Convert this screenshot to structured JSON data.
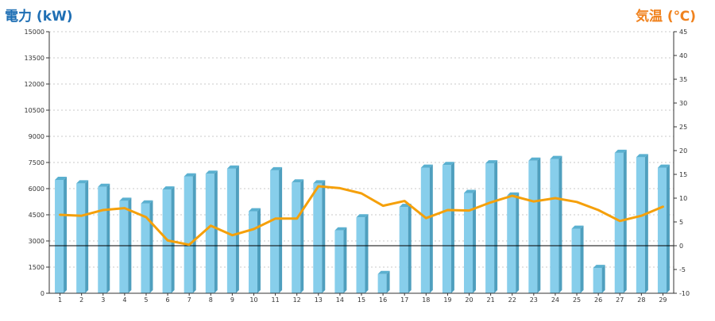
{
  "chart_data": {
    "type": "bar",
    "left_axis_title": "電力 (kW)",
    "right_axis_title": "気温 (℃)",
    "categories": [
      "1",
      "2",
      "3",
      "4",
      "5",
      "6",
      "7",
      "8",
      "9",
      "10",
      "11",
      "12",
      "13",
      "14",
      "15",
      "16",
      "17",
      "18",
      "19",
      "20",
      "21",
      "22",
      "23",
      "24",
      "25",
      "26",
      "27",
      "28",
      "29"
    ],
    "series": [
      {
        "type": "bar",
        "axis": "left",
        "color": "#87ceeb",
        "values": [
          6500,
          6300,
          6100,
          5300,
          5150,
          5950,
          6700,
          6850,
          7150,
          4700,
          7050,
          6350,
          6300,
          3600,
          4350,
          1100,
          4950,
          7200,
          7350,
          5750,
          7450,
          5600,
          7600,
          7700,
          3700,
          1450,
          8050,
          7800,
          7200
        ]
      },
      {
        "type": "line",
        "axis": "right",
        "color": "#f5a00a",
        "values": [
          6.5,
          6.3,
          7.5,
          7.9,
          6.0,
          1.1,
          0.2,
          4.2,
          2.2,
          3.5,
          5.7,
          5.7,
          12.5,
          12.1,
          11.0,
          8.4,
          9.4,
          5.8,
          7.5,
          7.4,
          9.1,
          10.5,
          9.3,
          10.0,
          9.2,
          7.5,
          5.2,
          6.3,
          8.2
        ]
      }
    ],
    "left_axis": {
      "min": 0,
      "max": 15000,
      "ticks": [
        "0",
        "1500",
        "3000",
        "4500",
        "6000",
        "7500",
        "9000",
        "10500",
        "12000",
        "13500",
        "15000"
      ]
    },
    "right_axis": {
      "min": -10,
      "max": 45,
      "ticks": [
        "-10",
        "-5",
        "0",
        "5",
        "10",
        "15",
        "20",
        "25",
        "30",
        "35",
        "40",
        "45"
      ]
    },
    "reference_line": {
      "axis": "right",
      "value": 0,
      "color": "#000000"
    },
    "grid": true,
    "grid_color": "#c8c8c8",
    "legend": "none"
  }
}
